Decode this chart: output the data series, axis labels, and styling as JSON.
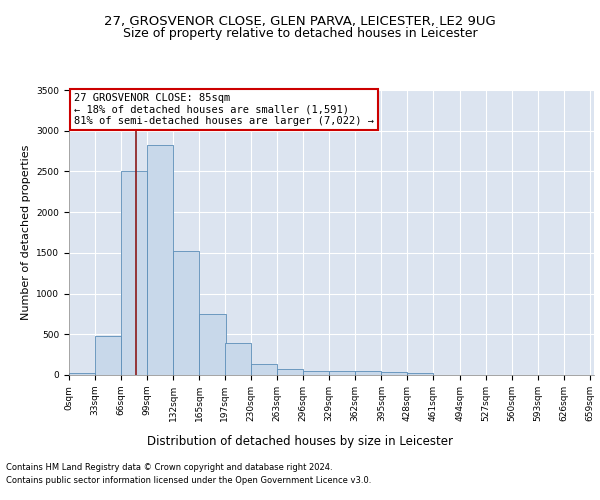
{
  "title1": "27, GROSVENOR CLOSE, GLEN PARVA, LEICESTER, LE2 9UG",
  "title2": "Size of property relative to detached houses in Leicester",
  "xlabel": "Distribution of detached houses by size in Leicester",
  "ylabel": "Number of detached properties",
  "annotation_line1": "27 GROSVENOR CLOSE: 85sqm",
  "annotation_line2": "← 18% of detached houses are smaller (1,591)",
  "annotation_line3": "81% of semi-detached houses are larger (7,022) →",
  "property_size": 85,
  "bin_width": 33,
  "bin_starts": [
    0,
    33,
    66,
    99,
    132,
    165,
    197,
    230,
    263,
    296,
    329,
    362,
    395,
    428,
    461,
    494,
    527,
    560,
    593,
    626
  ],
  "bar_heights": [
    20,
    480,
    2510,
    2820,
    1520,
    750,
    390,
    140,
    75,
    55,
    55,
    55,
    40,
    20,
    0,
    0,
    0,
    0,
    0,
    0
  ],
  "bar_color": "#c8d8ea",
  "bar_edge_color": "#5b8db8",
  "vline_color": "#8b1a1a",
  "vline_x": 85,
  "ylim": [
    0,
    3500
  ],
  "yticks": [
    0,
    500,
    1000,
    1500,
    2000,
    2500,
    3000,
    3500
  ],
  "background_color": "#dce4f0",
  "grid_color": "#ffffff",
  "footer1": "Contains HM Land Registry data © Crown copyright and database right 2024.",
  "footer2": "Contains public sector information licensed under the Open Government Licence v3.0.",
  "annotation_box_color": "#cc0000",
  "title1_fontsize": 9.5,
  "title2_fontsize": 9,
  "tick_fontsize": 6.5,
  "ylabel_fontsize": 8,
  "xlabel_fontsize": 8.5,
  "footer_fontsize": 6,
  "annotation_fontsize": 7.5
}
